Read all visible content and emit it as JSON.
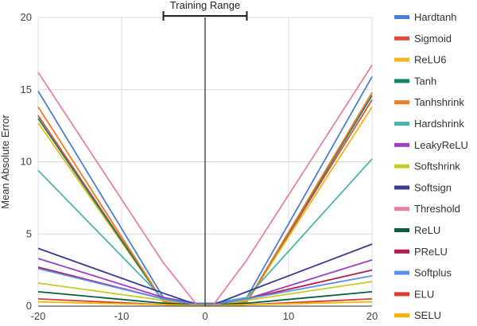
{
  "chart_data": {
    "type": "line",
    "title": "",
    "xlabel": "",
    "ylabel": "Mean Absolute Error",
    "xlim": [
      -20,
      20
    ],
    "ylim": [
      0,
      20
    ],
    "x_ticks": [
      -20,
      -10,
      0,
      10,
      20
    ],
    "y_ticks": [
      0,
      5,
      10,
      15,
      20
    ],
    "x_tick_labels": [
      "-20",
      "-10",
      "0",
      "10",
      "20"
    ],
    "y_tick_labels": [
      "0",
      "5",
      "10",
      "15",
      "20"
    ],
    "grid": true,
    "legend_position": "right",
    "annotation": {
      "label": "Training Range",
      "x_range": [
        -5,
        5
      ]
    },
    "series": [
      {
        "name": "Hardtanh",
        "color": "#4a7fd4",
        "points": [
          [
            -20,
            14.9
          ],
          [
            -5,
            0.6
          ],
          [
            -1,
            0.2
          ],
          [
            1,
            0.2
          ],
          [
            5,
            0.6
          ],
          [
            20,
            15.9
          ]
        ]
      },
      {
        "name": "Sigmoid",
        "color": "#e04a3a",
        "points": [
          [
            -20,
            13.2
          ],
          [
            -5,
            0.3
          ],
          [
            -1,
            0.1
          ],
          [
            1,
            0.1
          ],
          [
            5,
            0.3
          ],
          [
            20,
            14.3
          ]
        ]
      },
      {
        "name": "ReLU6",
        "color": "#f2b51c",
        "points": [
          [
            -20,
            12.7
          ],
          [
            -5,
            0.3
          ],
          [
            -1,
            0.1
          ],
          [
            1,
            0.1
          ],
          [
            5,
            0.3
          ],
          [
            20,
            13.8
          ]
        ]
      },
      {
        "name": "Tanh",
        "color": "#12856a",
        "points": [
          [
            -20,
            13.0
          ],
          [
            -5,
            0.3
          ],
          [
            -1,
            0.1
          ],
          [
            1,
            0.1
          ],
          [
            5,
            0.3
          ],
          [
            20,
            14.6
          ]
        ]
      },
      {
        "name": "Tanhshrink",
        "color": "#f07a26",
        "points": [
          [
            -20,
            13.8
          ],
          [
            -5,
            0.3
          ],
          [
            -1,
            0.1
          ],
          [
            1,
            0.1
          ],
          [
            5,
            0.3
          ],
          [
            20,
            14.8
          ]
        ]
      },
      {
        "name": "Hardshrink",
        "color": "#4db6ac",
        "points": [
          [
            -20,
            9.4
          ],
          [
            -5,
            0.5
          ],
          [
            -1,
            0.1
          ],
          [
            1,
            0.1
          ],
          [
            5,
            0.6
          ],
          [
            20,
            10.2
          ]
        ]
      },
      {
        "name": "LeakyReLU",
        "color": "#9c3fc4",
        "points": [
          [
            -20,
            3.3
          ],
          [
            -5,
            0.6
          ],
          [
            -1,
            0.1
          ],
          [
            1,
            0.1
          ],
          [
            5,
            0.5
          ],
          [
            20,
            3.2
          ]
        ]
      },
      {
        "name": "Softshrink",
        "color": "#c5cc2c",
        "points": [
          [
            -20,
            1.6
          ],
          [
            -5,
            0.4
          ],
          [
            -1,
            0.1
          ],
          [
            1,
            0.1
          ],
          [
            5,
            0.4
          ],
          [
            20,
            1.7
          ]
        ]
      },
      {
        "name": "Softsign",
        "color": "#3b3b8f",
        "points": [
          [
            -20,
            4.0
          ],
          [
            -5,
            0.9
          ],
          [
            -1,
            0.1
          ],
          [
            1,
            0.1
          ],
          [
            5,
            1.0
          ],
          [
            20,
            4.3
          ]
        ]
      },
      {
        "name": "Threshold",
        "color": "#ea7fa6",
        "points": [
          [
            -20,
            16.2
          ],
          [
            -5,
            3.0
          ],
          [
            -1,
            0.1
          ],
          [
            1,
            0.1
          ],
          [
            5,
            3.2
          ],
          [
            20,
            16.7
          ]
        ]
      },
      {
        "name": "ReLU",
        "color": "#0b5d3f",
        "points": [
          [
            -20,
            1.0
          ],
          [
            -5,
            0.2
          ],
          [
            -1,
            0.1
          ],
          [
            1,
            0.1
          ],
          [
            5,
            0.2
          ],
          [
            20,
            1.0
          ]
        ]
      },
      {
        "name": "PReLU",
        "color": "#b71c50",
        "points": [
          [
            -20,
            2.7
          ],
          [
            -5,
            0.5
          ],
          [
            -1,
            0.1
          ],
          [
            1,
            0.1
          ],
          [
            5,
            0.5
          ],
          [
            20,
            2.5
          ]
        ]
      },
      {
        "name": "Softplus",
        "color": "#5a8ff0",
        "points": [
          [
            -20,
            2.6
          ],
          [
            -5,
            0.5
          ],
          [
            -1,
            0.1
          ],
          [
            1,
            0.1
          ],
          [
            5,
            0.5
          ],
          [
            20,
            2.1
          ]
        ]
      },
      {
        "name": "ELU",
        "color": "#d93b2e",
        "points": [
          [
            -20,
            0.5
          ],
          [
            -5,
            0.1
          ],
          [
            -1,
            0.05
          ],
          [
            1,
            0.05
          ],
          [
            5,
            0.1
          ],
          [
            20,
            0.5
          ]
        ]
      },
      {
        "name": "SELU",
        "color": "#f5b400",
        "points": [
          [
            -20,
            0.3
          ],
          [
            -5,
            0.1
          ],
          [
            -1,
            0.05
          ],
          [
            1,
            0.05
          ],
          [
            5,
            0.1
          ],
          [
            20,
            0.3
          ]
        ]
      }
    ]
  }
}
